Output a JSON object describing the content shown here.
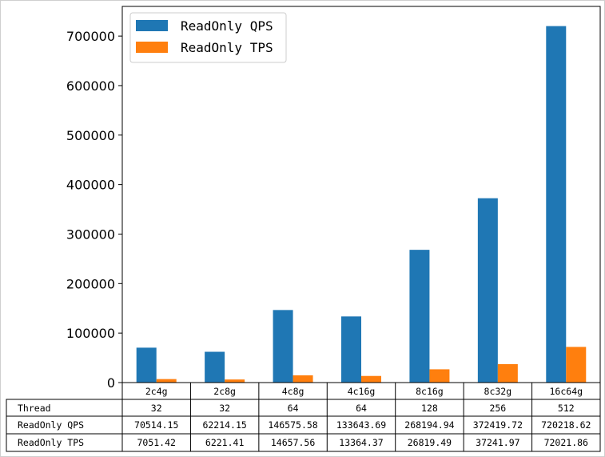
{
  "chart_data": {
    "type": "bar",
    "categories": [
      "2c4g",
      "2c8g",
      "4c8g",
      "4c16g",
      "8c16g",
      "8c32g",
      "16c64g"
    ],
    "series": [
      {
        "name": "ReadOnly QPS",
        "color": "#1f77b4",
        "values": [
          70514.15,
          62214.15,
          146575.58,
          133643.69,
          268194.94,
          372419.72,
          720218.62
        ]
      },
      {
        "name": "ReadOnly TPS",
        "color": "#ff7f0e",
        "values": [
          7051.42,
          6221.41,
          14657.56,
          13364.37,
          26819.49,
          37241.97,
          72021.86
        ]
      }
    ],
    "ylim": [
      0,
      760000
    ],
    "yticks": [
      0,
      100000,
      200000,
      300000,
      400000,
      500000,
      600000,
      700000
    ],
    "legend": "top-left",
    "table": {
      "columns": [
        "2c4g",
        "2c8g",
        "4c8g",
        "4c16g",
        "8c16g",
        "8c32g",
        "16c64g"
      ],
      "rows": [
        {
          "label": "Thread",
          "cells": [
            "32",
            "32",
            "64",
            "64",
            "128",
            "256",
            "512"
          ]
        },
        {
          "label": "ReadOnly QPS",
          "cells": [
            "70514.15",
            "62214.15",
            "146575.58",
            "133643.69",
            "268194.94",
            "372419.72",
            "720218.62"
          ]
        },
        {
          "label": "ReadOnly TPS",
          "cells": [
            "7051.42",
            "6221.41",
            "14657.56",
            "13364.37",
            "26819.49",
            "37241.97",
            "72021.86"
          ]
        }
      ]
    }
  }
}
